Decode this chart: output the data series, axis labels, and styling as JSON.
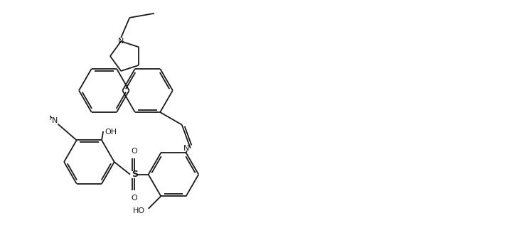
{
  "bg": "#ffffff",
  "lc": "#1a1a1a",
  "lw": 1.3,
  "fw": 7.37,
  "fh": 3.38,
  "dpi": 100,
  "xlim": [
    -0.5,
    14.5
  ],
  "ylim": [
    -3.5,
    4.5
  ]
}
